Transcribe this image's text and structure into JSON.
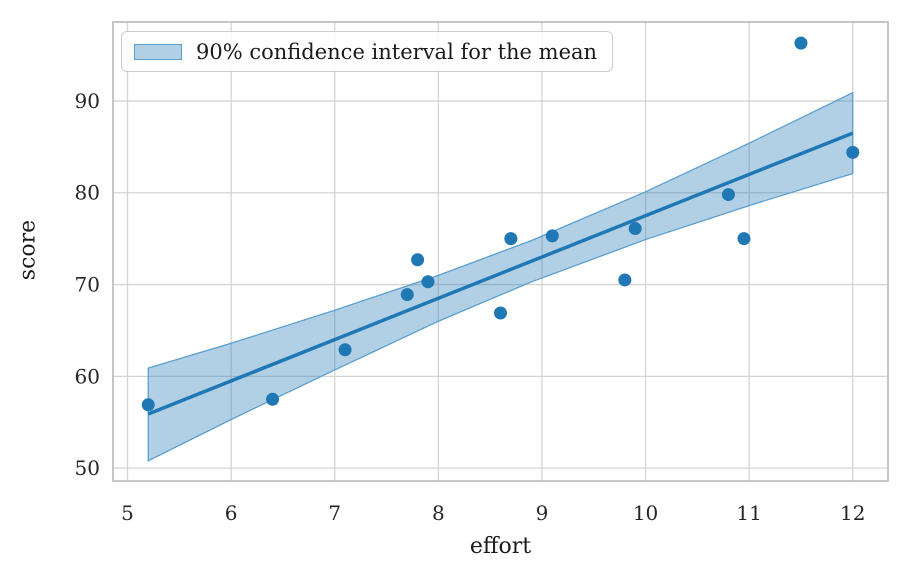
{
  "chart_data": {
    "type": "scatter",
    "title": "",
    "xlabel": "effort",
    "ylabel": "score",
    "legend_label": "90% confidence interval for the mean",
    "legend_position": "upper left",
    "grid": true,
    "xlim": [
      4.86,
      12.34
    ],
    "ylim": [
      48.6,
      98.6
    ],
    "x_ticks": [
      5,
      6,
      7,
      8,
      9,
      10,
      11,
      12
    ],
    "y_ticks": [
      50,
      60,
      70,
      80,
      90
    ],
    "points": [
      [
        5.2,
        56.9
      ],
      [
        6.4,
        57.5
      ],
      [
        7.1,
        62.9
      ],
      [
        7.7,
        68.9
      ],
      [
        7.8,
        72.7
      ],
      [
        7.9,
        70.3
      ],
      [
        8.6,
        66.9
      ],
      [
        8.7,
        75.0
      ],
      [
        9.1,
        75.3
      ],
      [
        9.8,
        70.5
      ],
      [
        9.9,
        76.1
      ],
      [
        10.8,
        79.8
      ],
      [
        10.95,
        75.0
      ],
      [
        11.5,
        96.3
      ],
      [
        12.0,
        84.4
      ]
    ],
    "regression_line": {
      "x": [
        5.2,
        12.0
      ],
      "y": [
        55.9,
        86.5
      ]
    },
    "ci_band": {
      "x": [
        5.2,
        6.0,
        7.0,
        8.0,
        8.9,
        10.0,
        11.0,
        12.0
      ],
      "upper": [
        60.9,
        63.6,
        67.2,
        71.0,
        74.8,
        80.1,
        85.4,
        90.9
      ],
      "lower": [
        50.8,
        55.3,
        60.7,
        66.0,
        70.3,
        74.9,
        78.6,
        82.1
      ]
    },
    "colors": {
      "point": "#1f77b4",
      "line": "#1f77b4",
      "band_fill": "rgba(31,119,180,0.35)",
      "band_edge": "#5b9fcf",
      "grid": "#d4d4d4",
      "spine": "#c0c0c0",
      "tick_text": "#262626"
    }
  }
}
